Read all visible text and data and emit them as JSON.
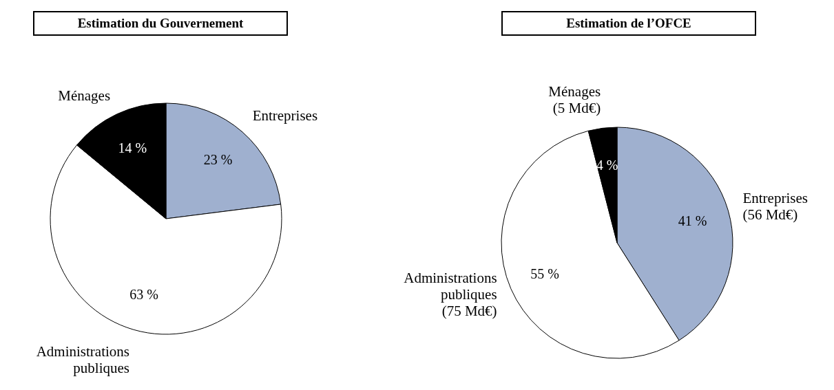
{
  "chart_data": [
    {
      "type": "pie",
      "title": "Estimation du Gouvernement",
      "categories": [
        "Entreprises",
        "Administrations publiques",
        "Ménages"
      ],
      "values": [
        23,
        63,
        14
      ],
      "colors": [
        "#9fb0cf",
        "#ffffff",
        "#000000"
      ],
      "value_labels": [
        "23 %",
        "63 %",
        "14 %"
      ]
    },
    {
      "type": "pie",
      "title": "Estimation de l’OFCE",
      "categories": [
        "Entreprises (56 Md€)",
        "Administrations publiques (75 Md€)",
        "Ménages (5 Md€)"
      ],
      "values": [
        41,
        55,
        4
      ],
      "colors": [
        "#9fb0cf",
        "#ffffff",
        "#000000"
      ],
      "value_labels": [
        "41 %",
        "55 %",
        "4 %"
      ]
    }
  ]
}
